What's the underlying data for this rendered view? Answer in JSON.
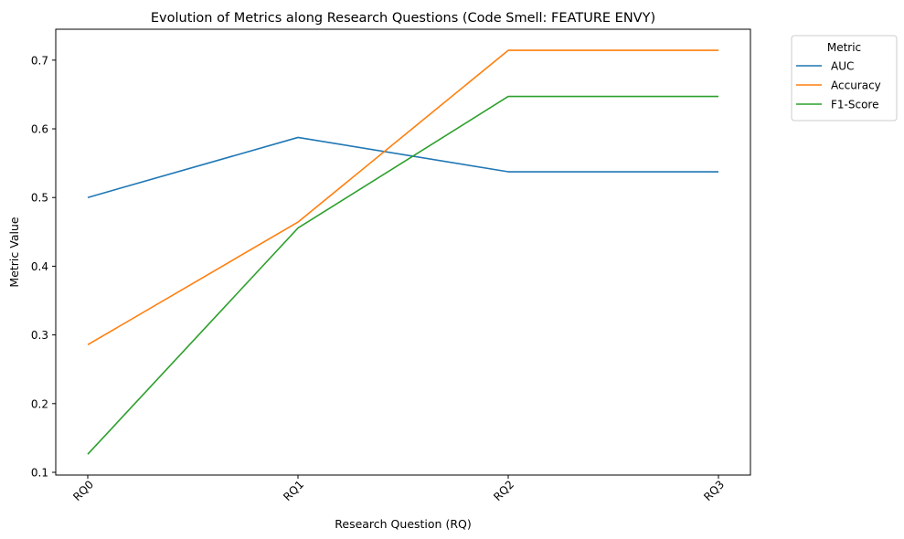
{
  "chart_data": {
    "type": "line",
    "title": "Evolution of Metrics along Research Questions (Code Smell: FEATURE ENVY)",
    "xlabel": "Research Question (RQ)",
    "ylabel": "Metric Value",
    "categories": [
      "RQ0",
      "RQ1",
      "RQ2",
      "RQ3"
    ],
    "ylim": [
      0.096,
      0.745
    ],
    "yticks": [
      0.1,
      0.2,
      0.3,
      0.4,
      0.5,
      0.6,
      0.7
    ],
    "grid": false,
    "legend": {
      "title": "Metric",
      "position": "outside-top-right"
    },
    "series": [
      {
        "name": "AUC",
        "color": "#1f77b4",
        "values": [
          0.5,
          0.5875,
          0.5375,
          0.5375
        ]
      },
      {
        "name": "Accuracy",
        "color": "#ff7f0e",
        "values": [
          0.2857,
          0.4643,
          0.7143,
          0.7143
        ]
      },
      {
        "name": "F1-Score",
        "color": "#2ca02c",
        "values": [
          0.1263,
          0.4556,
          0.6471,
          0.6471
        ]
      }
    ]
  }
}
